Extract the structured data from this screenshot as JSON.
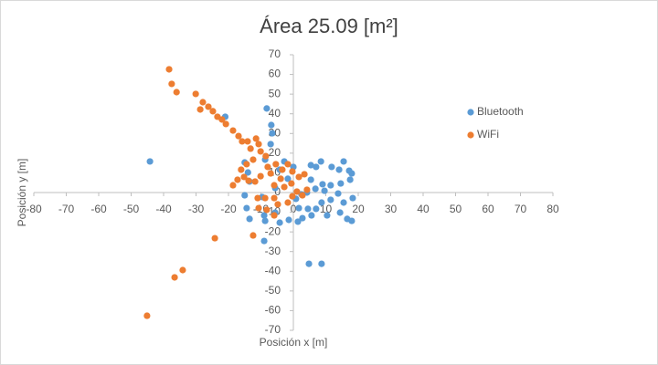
{
  "chart_data": {
    "type": "scatter",
    "title": "Área 25.09 [m²]",
    "x_label": "Posición x [m]",
    "y_label": "Posición y [m]",
    "xlim": [
      -80,
      80
    ],
    "ylim": [
      -70,
      70
    ],
    "xticks": [
      -80,
      -70,
      -60,
      -50,
      -40,
      -30,
      -20,
      -10,
      0,
      10,
      20,
      30,
      40,
      50,
      60,
      70,
      80
    ],
    "yticks": [
      -70,
      -60,
      -50,
      -40,
      -30,
      -20,
      -10,
      0,
      10,
      20,
      30,
      40,
      50,
      60,
      70
    ],
    "grid": false,
    "legend": "right",
    "series": [
      {
        "name": "Bluetooth",
        "color": "#5b9bd5",
        "x": [
          -44.2,
          -8.2,
          -6.8,
          -6.5,
          -21,
          -7,
          -8.7,
          -15,
          -14,
          -13.5,
          -15,
          -14.4,
          -13.5,
          -9,
          -8.7,
          -5.6,
          -4.2,
          -9,
          -1.4,
          1.4,
          4.8,
          8.7,
          2.8,
          5.6,
          7,
          8.7,
          10.4,
          14.4,
          16.6,
          18,
          15.5,
          18.3,
          11.5,
          13.8,
          9.6,
          6.8,
          4.2,
          2.5,
          0.8,
          5.4,
          9,
          11.5,
          14.6,
          17.5,
          7,
          8.5,
          11.8,
          15.5,
          17.2,
          18,
          14.1,
          5.4,
          0,
          -2.8,
          -4.2,
          -1.7,
          1.7,
          4.5,
          -5.6,
          -9.6
        ],
        "y": [
          15.8,
          42.7,
          34.3,
          30.1,
          38.5,
          24.6,
          16.7,
          15.3,
          10.2,
          5.6,
          -1.4,
          -7.9,
          -13.4,
          -11.6,
          -14.4,
          -10.2,
          -15.3,
          -24.6,
          -13.9,
          -14.8,
          -36.2,
          -36.2,
          -13,
          -11.6,
          -8.3,
          -5.1,
          -11.6,
          -10.2,
          -13.4,
          -14.4,
          -5.1,
          -2.8,
          -3.7,
          -0.5,
          0.9,
          1.9,
          0,
          -0.9,
          -3.2,
          6.5,
          4.2,
          3.7,
          4.6,
          6.5,
          13,
          15.8,
          13,
          15.8,
          11.1,
          9.7,
          11.6,
          13.9,
          13,
          15.8,
          11.6,
          7,
          -7.9,
          -8.3,
          2.3,
          -2.3
        ]
      },
      {
        "name": "WiFi",
        "color": "#ed7d31",
        "x": [
          -38.3,
          -37.5,
          -36,
          -30.1,
          -27.9,
          -28.7,
          -26.2,
          -24.8,
          -23.4,
          -22,
          -20.8,
          -18.6,
          -16.9,
          -15.8,
          -14.1,
          -11.5,
          -10.7,
          -13.2,
          -10.1,
          -8.5,
          -12.4,
          -14.4,
          -16.1,
          -15.2,
          -17.2,
          -18.6,
          -13.8,
          -11.8,
          -10.1,
          -7.9,
          -7,
          -5.4,
          -3.4,
          -1.7,
          -0.3,
          1.7,
          3.4,
          -3.9,
          -5.9,
          -2.8,
          -0.6,
          1.1,
          -0.3,
          -1.7,
          -5.9,
          -8.7,
          -11,
          -8.2,
          -5.9,
          -12.4,
          -24.2,
          -34.1,
          -36.6,
          -45.1,
          -10.7,
          -4.8,
          4.2,
          2.8
        ],
        "y": [
          62.6,
          55.2,
          51,
          50.1,
          45.9,
          42.2,
          43.6,
          41.3,
          38.5,
          37.1,
          34.8,
          31.5,
          28.7,
          26,
          26,
          27.4,
          24.6,
          22.3,
          20.9,
          18.5,
          16.7,
          14.4,
          11.6,
          7.9,
          6.5,
          3.7,
          6,
          5.6,
          8.3,
          13,
          9.7,
          14.4,
          11.6,
          14.4,
          10.7,
          7.9,
          9.3,
          7,
          3.7,
          2.8,
          4.6,
          0.5,
          -1.9,
          -5.1,
          -2.8,
          -2.8,
          -2.8,
          -8.8,
          -11.6,
          -21.8,
          -23.2,
          -39.4,
          -43.1,
          -62.6,
          -7.9,
          -6,
          1.4,
          -1.4
        ]
      }
    ]
  }
}
